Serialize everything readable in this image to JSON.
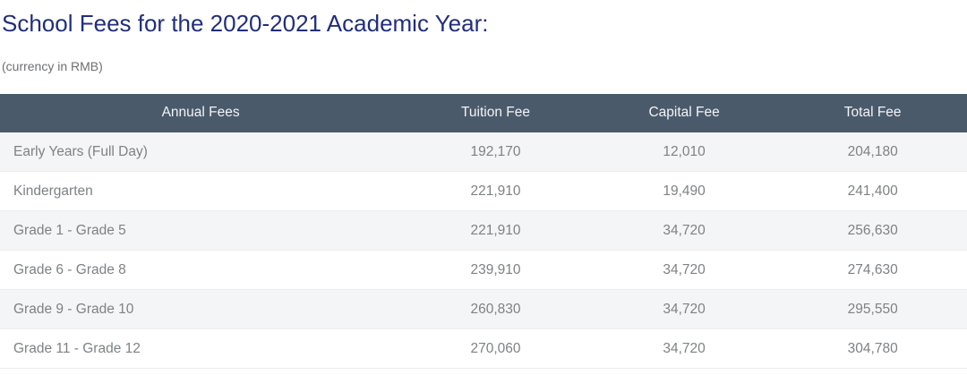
{
  "page": {
    "title": "School Fees for the 2020-2021 Academic Year:",
    "currency_note": "(currency in RMB)"
  },
  "table": {
    "columns": [
      "Annual Fees",
      "Tuition Fee",
      "Capital Fee",
      "Total Fee"
    ],
    "rows": [
      {
        "annual_fees": "Early Years (Full Day)",
        "tuition_fee": "192,170",
        "capital_fee": "12,010",
        "total_fee": "204,180"
      },
      {
        "annual_fees": "Kindergarten",
        "tuition_fee": "221,910",
        "capital_fee": "19,490",
        "total_fee": "241,400"
      },
      {
        "annual_fees": "Grade 1 - Grade 5",
        "tuition_fee": "221,910",
        "capital_fee": "34,720",
        "total_fee": "256,630"
      },
      {
        "annual_fees": "Grade 6 - Grade 8",
        "tuition_fee": "239,910",
        "capital_fee": "34,720",
        "total_fee": "274,630"
      },
      {
        "annual_fees": "Grade 9 - Grade 10",
        "tuition_fee": "260,830",
        "capital_fee": "34,720",
        "total_fee": "295,550"
      },
      {
        "annual_fees": "Grade 11 - Grade 12",
        "tuition_fee": "270,060",
        "capital_fee": "34,720",
        "total_fee": "304,780"
      }
    ]
  },
  "colors": {
    "title_text": "#212e7c",
    "header_bg": "#4b5a6b",
    "header_text": "#f2f4f6",
    "row_alt_bg": "#f4f5f6",
    "row_bg": "#ffffff",
    "cell_text": "#7e8285",
    "note_text": "#6d6f72",
    "row_border": "#ebedee"
  }
}
